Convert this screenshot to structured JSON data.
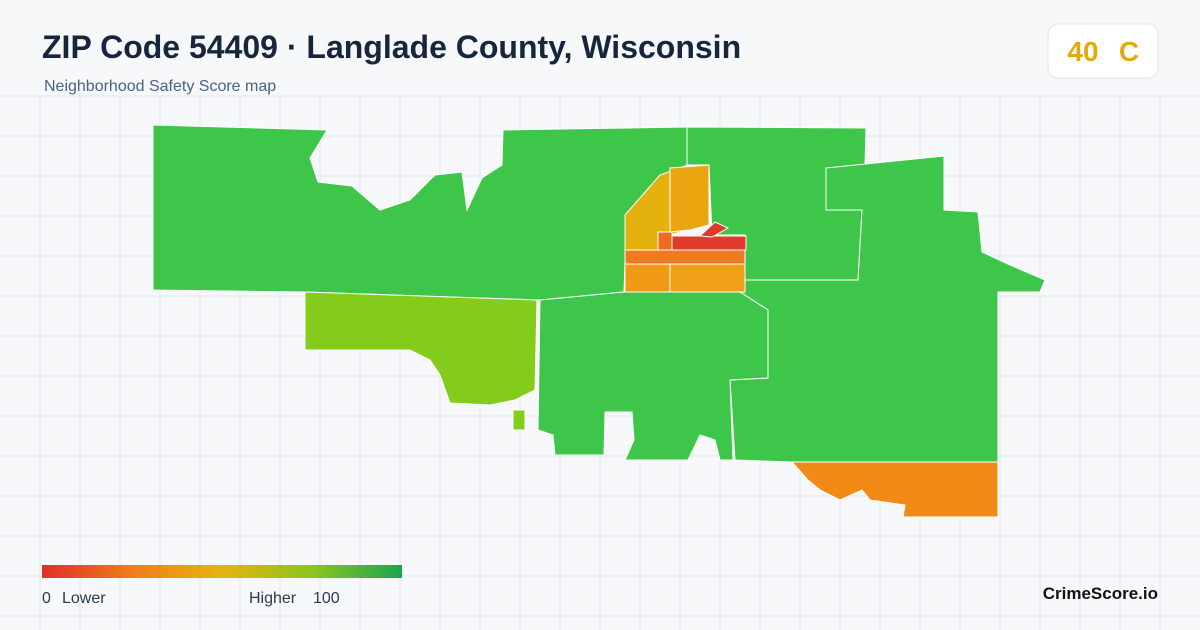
{
  "header": {
    "title": "ZIP Code 54409 · Langlade County, Wisconsin",
    "subtitle": "Neighborhood Safety Score map"
  },
  "score": {
    "value": 40,
    "grade": "C"
  },
  "legend": {
    "min": 0,
    "min_label": "Lower",
    "max_label": "Higher",
    "max": 100
  },
  "footer": {
    "brand": "CrimeScore.io"
  }
}
